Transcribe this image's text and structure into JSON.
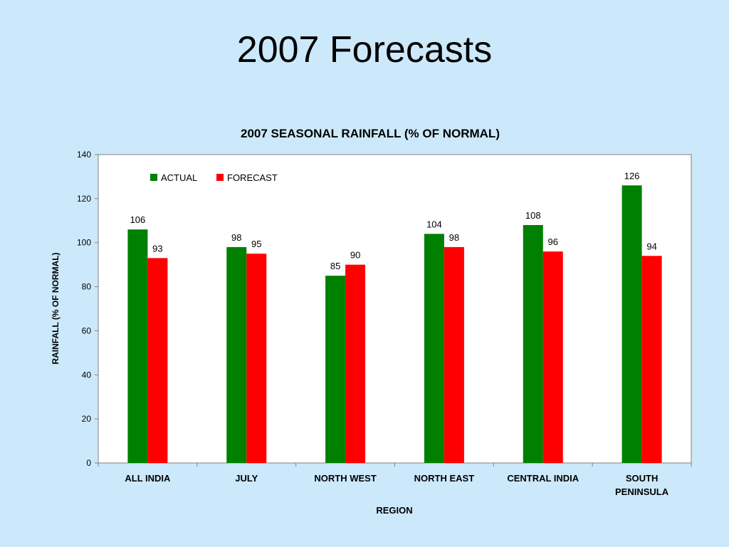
{
  "slide": {
    "title": "2007 Forecasts"
  },
  "chart_data": {
    "type": "bar",
    "title": "2007 SEASONAL RAINFALL (% OF NORMAL)",
    "xlabel": "REGION",
    "ylabel": "RAINFALL (% OF NORMAL)",
    "ylim": [
      0,
      140
    ],
    "yticks": [
      0,
      20,
      40,
      60,
      80,
      100,
      120,
      140
    ],
    "grid": false,
    "legend_position": "top-left",
    "categories": [
      [
        "ALL INDIA"
      ],
      [
        "JULY"
      ],
      [
        "NORTH WEST"
      ],
      [
        "NORTH EAST"
      ],
      [
        "CENTRAL INDIA"
      ],
      [
        "SOUTH",
        "PENINSULA"
      ]
    ],
    "series": [
      {
        "name": "ACTUAL",
        "color": "#008000",
        "values": [
          106,
          98,
          85,
          104,
          108,
          126
        ]
      },
      {
        "name": "FORECAST",
        "color": "#ff0000",
        "values": [
          93,
          95,
          90,
          98,
          96,
          94
        ]
      }
    ],
    "data_labels": true
  }
}
